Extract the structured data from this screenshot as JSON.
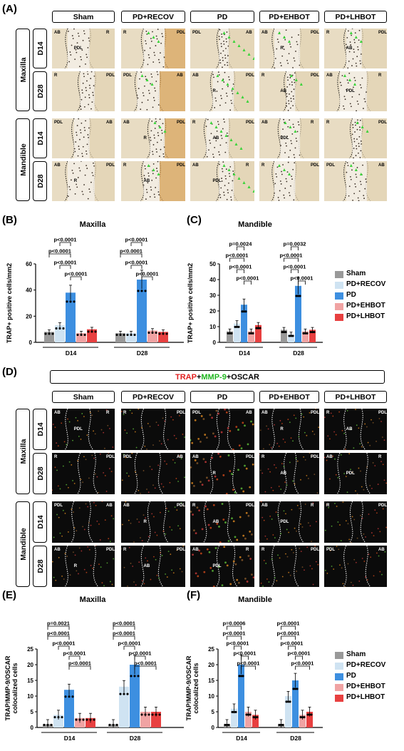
{
  "panels": {
    "A": "(A)",
    "B": "(B)",
    "C": "(C)",
    "D": "(D)",
    "E": "(E)",
    "F": "(F)"
  },
  "groups": [
    "Sham",
    "PD+RECOV",
    "PD",
    "PD+EHBOT",
    "PD+LHBOT"
  ],
  "jaws": [
    "Maxilla",
    "Mandible"
  ],
  "days": [
    "D14",
    "D28"
  ],
  "colors": {
    "Sham": "#999999",
    "PD+RECOV": "#cfe3f2",
    "PD": "#3d8fe0",
    "PD+EHBOT": "#f0a3a3",
    "PD+LHBOT": "#e84040"
  },
  "tile_labels": {
    "AB": "AB",
    "R": "R",
    "PDL": "PDL"
  },
  "stain_title": {
    "trap": "TRAP",
    "plus1": "+",
    "mmp9": "MMP-9",
    "plus2": "+OSCAR"
  },
  "legend": [
    "Sham",
    "PD+RECOV",
    "PD",
    "PD+EHBOT",
    "PD+LHBOT"
  ],
  "chart_data": [
    {
      "id": "B",
      "type": "bar",
      "title": "Maxilla",
      "ylabel": "TRAP+ positive cells/mm2",
      "ylim": [
        0,
        60
      ],
      "yticks": [
        0,
        20,
        40,
        60
      ],
      "categories": [
        "D14",
        "D28"
      ],
      "series": [
        {
          "name": "Sham",
          "values": [
            8,
            7
          ]
        },
        {
          "name": "PD+RECOV",
          "values": [
            13,
            7
          ]
        },
        {
          "name": "PD",
          "values": [
            38,
            48
          ]
        },
        {
          "name": "PD+EHBOT",
          "values": [
            7,
            9
          ]
        },
        {
          "name": "PD+LHBOT",
          "values": [
            10,
            8
          ]
        }
      ],
      "annotations": {
        "D14": [
          "p<0.0001",
          "p<0.0001",
          "p<0.0001",
          "p<0.0001"
        ],
        "D28": [
          "p<0.0001",
          "p<0.0001",
          "p<0.0001",
          "p<0.0001"
        ]
      }
    },
    {
      "id": "C",
      "type": "bar",
      "title": "Mandible",
      "ylabel": "TRAP+ positive cells/mm2",
      "ylim": [
        0,
        50
      ],
      "yticks": [
        0,
        10,
        20,
        30,
        40,
        50
      ],
      "categories": [
        "D14",
        "D28"
      ],
      "series": [
        {
          "name": "Sham",
          "values": [
            7,
            8
          ]
        },
        {
          "name": "PD+RECOV",
          "values": [
            12,
            5
          ]
        },
        {
          "name": "PD",
          "values": [
            24,
            36
          ]
        },
        {
          "name": "PD+EHBOT",
          "values": [
            7,
            7
          ]
        },
        {
          "name": "PD+LHBOT",
          "values": [
            11,
            8
          ]
        }
      ],
      "annotations": {
        "D14": [
          "p=0.0024",
          "p<0.0001",
          "p<0.0001",
          "p<0.0001"
        ],
        "D28": [
          "p=0.0032",
          "p<0.0001",
          "p<0.0001",
          "p<0.0001"
        ]
      }
    },
    {
      "id": "E",
      "type": "bar",
      "title": "Maxilla",
      "ylabel": "TRAP/MMP-9/OSCAR colocalized cells",
      "ylim": [
        0,
        25
      ],
      "yticks": [
        0,
        5,
        10,
        15,
        20,
        25
      ],
      "categories": [
        "D14",
        "D28"
      ],
      "series": [
        {
          "name": "Sham",
          "values": [
            1,
            1
          ]
        },
        {
          "name": "PD+RECOV",
          "values": [
            4,
            13
          ]
        },
        {
          "name": "PD",
          "values": [
            12,
            20
          ]
        },
        {
          "name": "PD+EHBOT",
          "values": [
            3,
            5
          ]
        },
        {
          "name": "PD+LHBOT",
          "values": [
            3,
            5
          ]
        }
      ],
      "annotations": {
        "D14": [
          "p=0.0021",
          "p<0.0001",
          "p<0.0001",
          "p<0.0001",
          "p<0.0001"
        ],
        "D28": [
          "p<0.0001",
          "p<0.0001",
          "p<0.0001",
          "p<0.0001",
          "p<0.0001"
        ]
      }
    },
    {
      "id": "F",
      "type": "bar",
      "title": "Mandible",
      "ylabel": "TRAP/MMP-9/OSCAR colocalized cells",
      "ylim": [
        0,
        25
      ],
      "yticks": [
        0,
        5,
        10,
        15,
        20,
        25
      ],
      "categories": [
        "D14",
        "D28"
      ],
      "series": [
        {
          "name": "Sham",
          "values": [
            1,
            1
          ]
        },
        {
          "name": "PD+RECOV",
          "values": [
            6,
            10
          ]
        },
        {
          "name": "PD",
          "values": [
            20,
            15
          ]
        },
        {
          "name": "PD+EHBOT",
          "values": [
            5,
            4
          ]
        },
        {
          "name": "PD+LHBOT",
          "values": [
            4,
            5
          ]
        }
      ],
      "annotations": {
        "D14": [
          "p=0.0006",
          "p<0.0001",
          "p<0.0001",
          "p<0.0001",
          "p<0.0001"
        ],
        "D28": [
          "p<0.0001",
          "p<0.0001",
          "p<0.0001",
          "p<0.0001",
          "p<0.0001"
        ]
      }
    }
  ]
}
